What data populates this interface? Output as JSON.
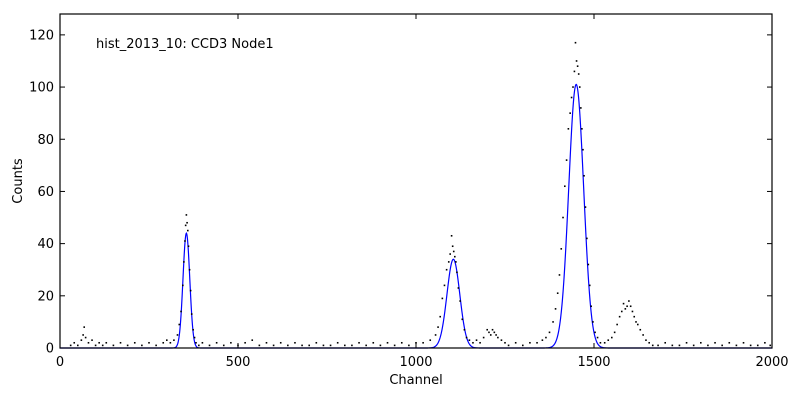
{
  "chart_data": {
    "type": "scatter",
    "title": "",
    "annotation": "hist_2013_10: CCD3 Node1",
    "xlabel": "Channel",
    "ylabel": "Counts",
    "xlim": [
      0,
      2000
    ],
    "ylim": [
      0,
      128
    ],
    "xticks": [
      0,
      500,
      1000,
      1500,
      2000
    ],
    "yticks": [
      0,
      20,
      40,
      60,
      80,
      100,
      120
    ],
    "grid": false,
    "colors": {
      "points": "#000000",
      "fit": "#0000ff",
      "axes": "#000000"
    },
    "series": [
      {
        "type": "scatter",
        "points": [
          [
            30,
            1
          ],
          [
            40,
            2
          ],
          [
            50,
            1
          ],
          [
            60,
            3
          ],
          [
            65,
            5
          ],
          [
            68,
            8
          ],
          [
            72,
            4
          ],
          [
            80,
            2
          ],
          [
            90,
            3
          ],
          [
            100,
            1
          ],
          [
            110,
            2
          ],
          [
            120,
            1
          ],
          [
            130,
            2
          ],
          [
            150,
            1
          ],
          [
            170,
            2
          ],
          [
            190,
            1
          ],
          [
            210,
            2
          ],
          [
            230,
            1
          ],
          [
            250,
            2
          ],
          [
            270,
            1
          ],
          [
            290,
            2
          ],
          [
            300,
            3
          ],
          [
            310,
            2
          ],
          [
            320,
            3
          ],
          [
            330,
            5
          ],
          [
            335,
            9
          ],
          [
            340,
            14
          ],
          [
            345,
            24
          ],
          [
            348,
            33
          ],
          [
            351,
            41
          ],
          [
            353,
            47
          ],
          [
            355,
            51
          ],
          [
            357,
            48
          ],
          [
            359,
            45
          ],
          [
            361,
            39
          ],
          [
            364,
            30
          ],
          [
            367,
            22
          ],
          [
            370,
            13
          ],
          [
            374,
            7
          ],
          [
            378,
            4
          ],
          [
            382,
            2
          ],
          [
            390,
            1
          ],
          [
            400,
            2
          ],
          [
            420,
            1
          ],
          [
            440,
            2
          ],
          [
            460,
            1
          ],
          [
            480,
            2
          ],
          [
            500,
            1
          ],
          [
            520,
            2
          ],
          [
            540,
            3
          ],
          [
            560,
            1
          ],
          [
            580,
            2
          ],
          [
            600,
            1
          ],
          [
            620,
            2
          ],
          [
            640,
            1
          ],
          [
            660,
            2
          ],
          [
            680,
            1
          ],
          [
            700,
            1
          ],
          [
            720,
            2
          ],
          [
            740,
            1
          ],
          [
            760,
            1
          ],
          [
            780,
            2
          ],
          [
            800,
            1
          ],
          [
            820,
            1
          ],
          [
            840,
            2
          ],
          [
            860,
            1
          ],
          [
            880,
            2
          ],
          [
            900,
            1
          ],
          [
            920,
            2
          ],
          [
            940,
            1
          ],
          [
            960,
            2
          ],
          [
            980,
            1
          ],
          [
            1000,
            2
          ],
          [
            1020,
            2
          ],
          [
            1040,
            3
          ],
          [
            1055,
            5
          ],
          [
            1062,
            8
          ],
          [
            1068,
            12
          ],
          [
            1074,
            19
          ],
          [
            1080,
            24
          ],
          [
            1086,
            30
          ],
          [
            1092,
            33
          ],
          [
            1096,
            36
          ],
          [
            1100,
            43
          ],
          [
            1103,
            39
          ],
          [
            1106,
            37
          ],
          [
            1109,
            35
          ],
          [
            1112,
            33
          ],
          [
            1115,
            29
          ],
          [
            1119,
            23
          ],
          [
            1124,
            18
          ],
          [
            1130,
            11
          ],
          [
            1136,
            7
          ],
          [
            1142,
            4
          ],
          [
            1150,
            3
          ],
          [
            1160,
            2
          ],
          [
            1170,
            3
          ],
          [
            1180,
            2
          ],
          [
            1190,
            4
          ],
          [
            1200,
            7
          ],
          [
            1205,
            6
          ],
          [
            1210,
            5
          ],
          [
            1215,
            7
          ],
          [
            1220,
            6
          ],
          [
            1225,
            5
          ],
          [
            1230,
            4
          ],
          [
            1240,
            3
          ],
          [
            1250,
            2
          ],
          [
            1260,
            1
          ],
          [
            1280,
            2
          ],
          [
            1300,
            1
          ],
          [
            1320,
            2
          ],
          [
            1340,
            2
          ],
          [
            1355,
            3
          ],
          [
            1365,
            4
          ],
          [
            1375,
            6
          ],
          [
            1385,
            10
          ],
          [
            1392,
            15
          ],
          [
            1398,
            21
          ],
          [
            1403,
            28
          ],
          [
            1408,
            38
          ],
          [
            1413,
            50
          ],
          [
            1418,
            62
          ],
          [
            1423,
            72
          ],
          [
            1428,
            84
          ],
          [
            1433,
            90
          ],
          [
            1437,
            96
          ],
          [
            1441,
            100
          ],
          [
            1445,
            106
          ],
          [
            1448,
            117
          ],
          [
            1451,
            110
          ],
          [
            1454,
            108
          ],
          [
            1457,
            105
          ],
          [
            1460,
            100
          ],
          [
            1463,
            92
          ],
          [
            1466,
            84
          ],
          [
            1469,
            76
          ],
          [
            1472,
            66
          ],
          [
            1476,
            54
          ],
          [
            1480,
            42
          ],
          [
            1484,
            32
          ],
          [
            1488,
            24
          ],
          [
            1492,
            16
          ],
          [
            1497,
            10
          ],
          [
            1503,
            6
          ],
          [
            1510,
            4
          ],
          [
            1518,
            2
          ],
          [
            1530,
            2
          ],
          [
            1540,
            3
          ],
          [
            1550,
            4
          ],
          [
            1558,
            6
          ],
          [
            1565,
            9
          ],
          [
            1572,
            12
          ],
          [
            1578,
            14
          ],
          [
            1583,
            17
          ],
          [
            1588,
            15
          ],
          [
            1593,
            16
          ],
          [
            1598,
            18
          ],
          [
            1603,
            16
          ],
          [
            1608,
            14
          ],
          [
            1613,
            12
          ],
          [
            1618,
            10
          ],
          [
            1623,
            9
          ],
          [
            1630,
            7
          ],
          [
            1638,
            5
          ],
          [
            1646,
            3
          ],
          [
            1655,
            2
          ],
          [
            1665,
            1
          ],
          [
            1680,
            1
          ],
          [
            1700,
            2
          ],
          [
            1720,
            1
          ],
          [
            1740,
            1
          ],
          [
            1760,
            2
          ],
          [
            1780,
            1
          ],
          [
            1800,
            2
          ],
          [
            1820,
            1
          ],
          [
            1840,
            2
          ],
          [
            1860,
            1
          ],
          [
            1880,
            2
          ],
          [
            1900,
            1
          ],
          [
            1920,
            2
          ],
          [
            1940,
            1
          ],
          [
            1960,
            1
          ],
          [
            1980,
            2
          ],
          [
            1995,
            1
          ]
        ]
      },
      {
        "type": "fit",
        "components": [
          {
            "amplitude": 44,
            "center": 355,
            "sigma": 9.5
          },
          {
            "amplitude": 34,
            "center": 1105,
            "sigma": 18
          },
          {
            "amplitude": 101,
            "center": 1450,
            "sigma": 21
          }
        ]
      }
    ]
  }
}
